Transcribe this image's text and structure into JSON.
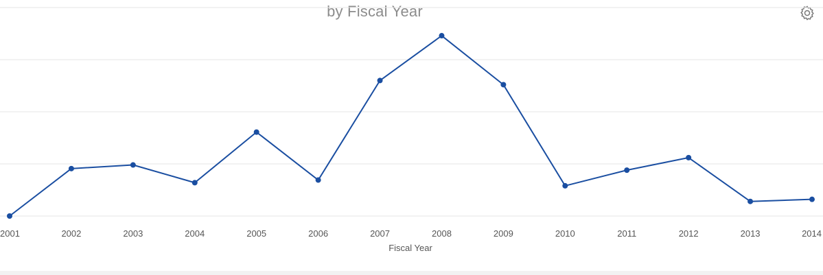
{
  "chart_data": {
    "type": "line",
    "title": "by Fiscal Year",
    "xlabel": "Fiscal Year",
    "ylabel": "",
    "categories": [
      "2001",
      "2002",
      "2003",
      "2004",
      "2005",
      "2006",
      "2007",
      "2008",
      "2009",
      "2010",
      "2011",
      "2012",
      "2013",
      "2014"
    ],
    "series": [
      {
        "values": [
          0,
          0.91,
          0.98,
          0.64,
          1.61,
          0.69,
          2.6,
          3.46,
          2.52,
          0.58,
          0.88,
          1.12,
          0.28,
          0.32
        ]
      }
    ],
    "ylim": [
      0,
      4
    ],
    "grid": true,
    "legend": "none",
    "colors": {
      "line": "#1a4ea1",
      "grid": "#e6e6e6",
      "text": "#555555"
    }
  },
  "toolbar": {
    "settings_icon": "gear-icon"
  }
}
